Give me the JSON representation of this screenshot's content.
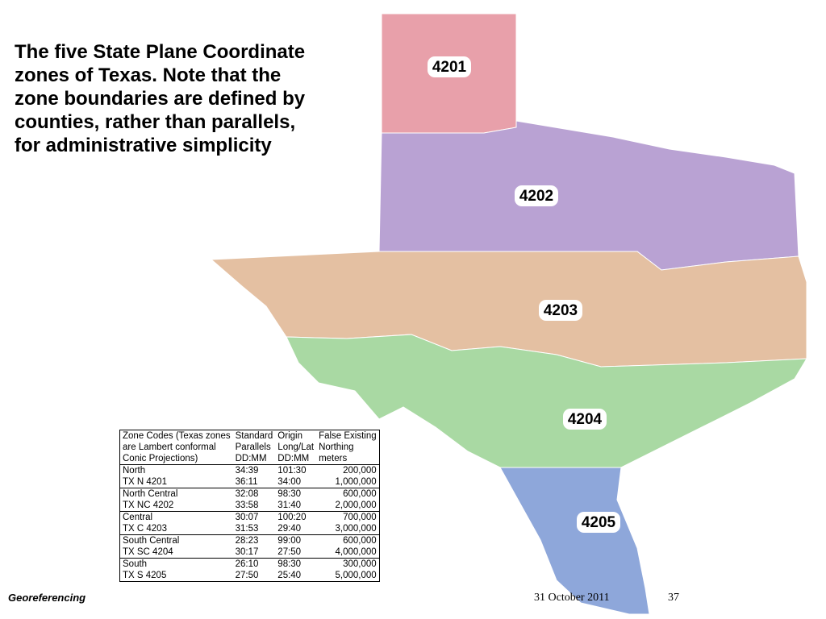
{
  "slide": {
    "title_lines": [
      "The five State Plane Coordinate",
      "zones of Texas. Note that the",
      "zone boundaries are defined by",
      "counties, rather than parallels,",
      "for administrative simplicity"
    ],
    "zones": [
      "4201",
      "4202",
      "4203",
      "4204",
      "4205"
    ],
    "table": {
      "header": [
        [
          "Zone Codes (Texas zones",
          "are Lambert conformal",
          "Conic Projections)"
        ],
        [
          "Standard",
          "Parallels",
          "DD:MM"
        ],
        [
          "Origin",
          "Long/Lat",
          "DD:MM"
        ],
        [
          "False Existing",
          "Northing",
          "meters"
        ]
      ],
      "rows": [
        [
          [
            "North",
            "TX N 4201"
          ],
          [
            "34:39",
            "36:11"
          ],
          [
            "101:30",
            "34:00"
          ],
          [
            "200,000",
            "1,000,000"
          ]
        ],
        [
          [
            "North Central",
            "TX NC 4202"
          ],
          [
            "32:08",
            "33:58"
          ],
          [
            "98:30",
            "31:40"
          ],
          [
            "600,000",
            "2,000,000"
          ]
        ],
        [
          [
            "Central",
            "TX C 4203"
          ],
          [
            "30:07",
            "31:53"
          ],
          [
            "100:20",
            "29:40"
          ],
          [
            "700,000",
            "3,000,000"
          ]
        ],
        [
          [
            "South Central",
            "TX SC 4204"
          ],
          [
            "28:23",
            "30:17"
          ],
          [
            "99:00",
            "27:50"
          ],
          [
            "600,000",
            "4,000,000"
          ]
        ],
        [
          [
            "South",
            "TX S 4205"
          ],
          [
            "26:10",
            "27:50"
          ],
          [
            "98:30",
            "25:40"
          ],
          [
            "300,000",
            "5,000,000"
          ]
        ]
      ]
    },
    "footer": {
      "left": "Georeferencing",
      "date": "31 October 2011",
      "page": "37"
    }
  }
}
